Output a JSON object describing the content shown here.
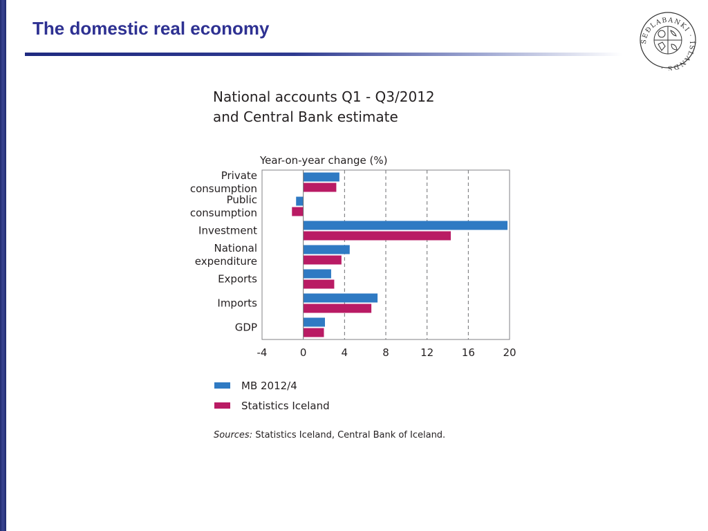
{
  "slide": {
    "title": "The domestic real economy"
  },
  "logo": {
    "icon": "central-bank-of-iceland-seal",
    "text": "SEÐLABANKI · ÍSLANDS ·"
  },
  "chart_data": {
    "type": "bar",
    "orientation": "horizontal",
    "title_lines": [
      "National accounts Q1 - Q3/2012",
      "and Central Bank estimate"
    ],
    "axis_title": "Year-on-year change (%)",
    "categories": [
      [
        "Private",
        "consumption"
      ],
      [
        "Public",
        "consumption"
      ],
      [
        "Investment"
      ],
      [
        "National",
        "expenditure"
      ],
      [
        "Exports"
      ],
      [
        "Imports"
      ],
      [
        "GDP"
      ]
    ],
    "series": [
      {
        "name": "MB 2012/4",
        "color": "#2f7ac3",
        "values": [
          3.5,
          -0.7,
          19.8,
          4.5,
          2.7,
          7.2,
          2.1
        ]
      },
      {
        "name": "Statistics Iceland",
        "color": "#b91b64",
        "values": [
          3.2,
          -1.1,
          14.3,
          3.7,
          3.0,
          6.6,
          2.0
        ]
      }
    ],
    "xlim": [
      -4,
      20
    ],
    "xticks": [
      -4,
      0,
      4,
      8,
      12,
      16,
      20
    ],
    "gridlines": [
      4,
      8,
      12,
      16
    ],
    "legend_position": "bottom"
  },
  "sources": {
    "label": "Sources:",
    "text": " Statistics Iceland, Central Bank of Iceland."
  }
}
